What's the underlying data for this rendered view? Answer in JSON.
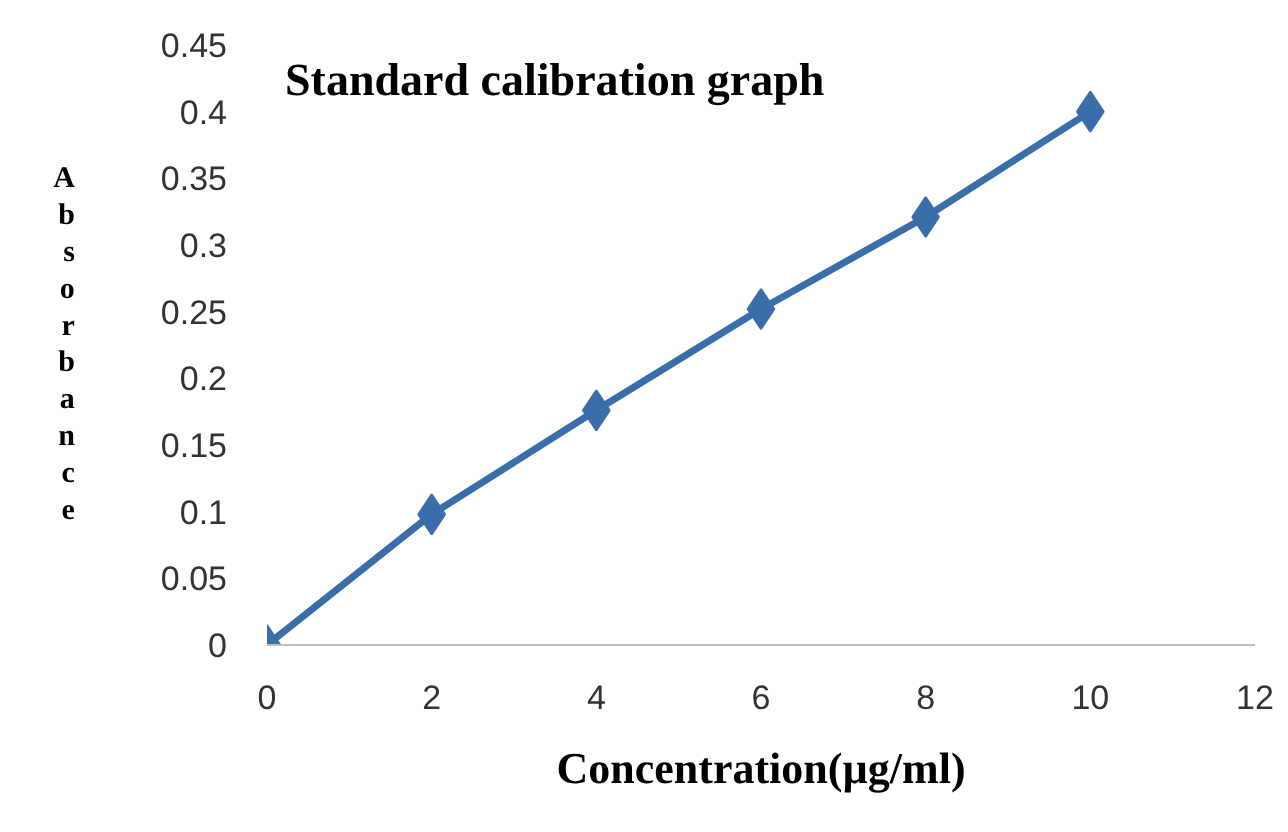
{
  "chart_data": {
    "type": "line",
    "title": "Standard calibration graph",
    "xlabel": "Concentration(µg/ml)",
    "ylabel": "Absorbance",
    "x": [
      0,
      2,
      4,
      6,
      8,
      10
    ],
    "series": [
      {
        "color": "#3a6eaa",
        "values": [
          0,
          0.098,
          0.176,
          0.252,
          0.321,
          0.4
        ]
      }
    ],
    "xlim": [
      0,
      12
    ],
    "xticks": [
      0,
      2,
      4,
      6,
      8,
      10,
      12
    ],
    "ylim": [
      0,
      0.45
    ],
    "yticks": [
      0,
      {
        "value": 0.05,
        "label": "0.05"
      },
      {
        "value": 0.1,
        "label": "0.1"
      },
      {
        "value": 0.15,
        "label": "0.15"
      },
      {
        "value": 0.2,
        "label": "0.2"
      },
      {
        "value": 0.25,
        "label": "0.25"
      },
      {
        "value": 0.3,
        "label": "0.3"
      },
      {
        "value": 0.35,
        "label": "0.35"
      },
      {
        "value": 0.4,
        "label": "0.4"
      },
      {
        "value": 0.45,
        "label": "0.45"
      }
    ],
    "grid": false,
    "marker": "diamond",
    "line_style": "solid"
  }
}
